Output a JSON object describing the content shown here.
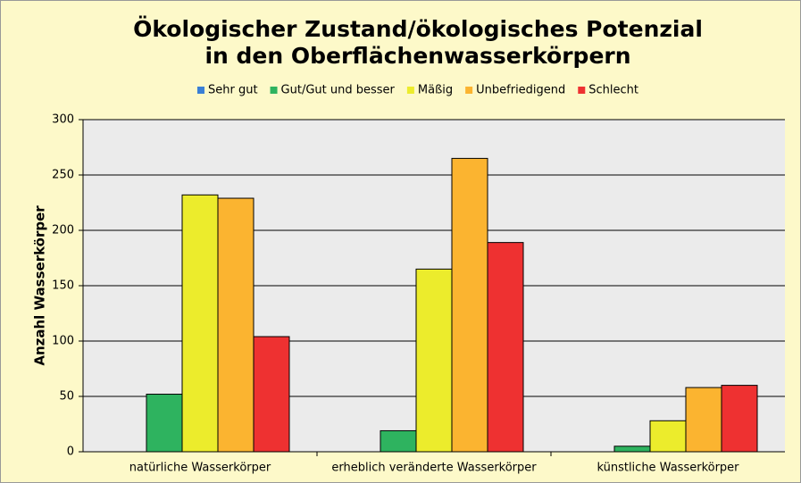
{
  "chart_data": {
    "type": "bar",
    "title": [
      "Ökologischer Zustand/ökologisches Potenzial",
      "in den Oberflächenwasserkörpern"
    ],
    "y_label": "Anzahl Wasserkörper",
    "categories": [
      "natürliche Wasserkörper",
      "erheblich veränderte Wasserkörper",
      "künstliche Wasserkörper"
    ],
    "series": [
      {
        "name": "Sehr gut",
        "color": "#3a7fd5",
        "values": [
          0,
          0,
          0
        ]
      },
      {
        "name": "Gut/Gut und besser",
        "color": "#2eb35f",
        "values": [
          52,
          19,
          5
        ]
      },
      {
        "name": "Mäßig",
        "color": "#ecec2c",
        "values": [
          232,
          165,
          28
        ]
      },
      {
        "name": "Unbefriedigend",
        "color": "#fbb430",
        "values": [
          229,
          265,
          58
        ]
      },
      {
        "name": "Schlecht",
        "color": "#ee3131",
        "values": [
          104,
          189,
          60
        ]
      }
    ],
    "ylim": [
      0,
      300
    ],
    "yticks": [
      0,
      50,
      100,
      150,
      200,
      250,
      300
    ],
    "grid": true,
    "legend": "top"
  }
}
